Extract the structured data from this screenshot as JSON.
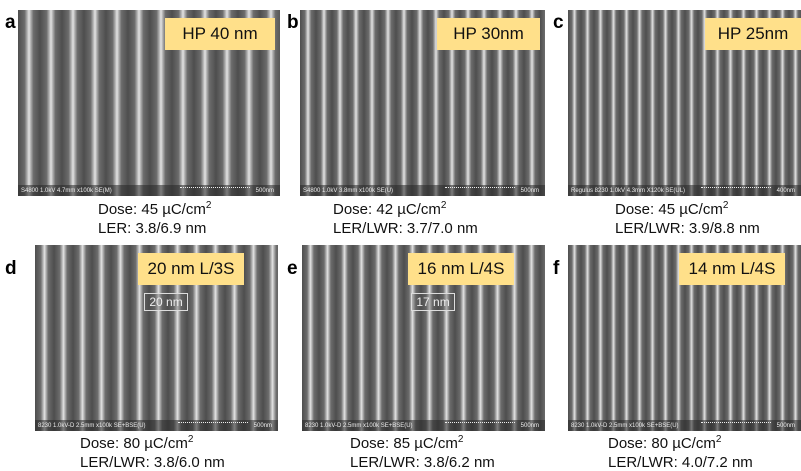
{
  "panels": [
    {
      "letter": "a",
      "label": "HP 40 nm",
      "dose": "Dose: 45 µC/cm",
      "dose_sup": "2",
      "ler": "LER: 3.8/6.9 nm",
      "info": "S4800 1.0kV 4.7mm x100k SE(M)",
      "scale": "500nm"
    },
    {
      "letter": "b",
      "label": "HP 30nm",
      "dose": "Dose: 42 µC/cm",
      "dose_sup": "2",
      "ler": "LER/LWR: 3.7/7.0 nm",
      "info": "S4800 1.0kV 3.8mm x100k SE(U)",
      "scale": "500nm"
    },
    {
      "letter": "c",
      "label": "HP 25nm",
      "dose": "Dose: 45 µC/cm",
      "dose_sup": "2",
      "ler": "LER/LWR: 3.9/8.8 nm",
      "info": "Regulus 8230 1.0kV 4.3mm X120k SE(UL)",
      "scale": "400nm"
    },
    {
      "letter": "d",
      "label": "20 nm  L/3S",
      "dose": "Dose: 80 µC/cm",
      "dose_sup": "2",
      "ler": "LER/LWR: 3.8/6.0 nm",
      "info": "8230 1.0kV-D 2.5mm x100k SE+BSE(U)",
      "scale": "500nm",
      "measure": "20 nm"
    },
    {
      "letter": "e",
      "label": "16 nm  L/4S",
      "dose": "Dose: 85 µC/cm",
      "dose_sup": "2",
      "ler": "LER/LWR: 3.8/6.2 nm",
      "info": "8230 1.0kV-D 2.5mm x100k SE+BSE(U)",
      "scale": "500nm",
      "measure": "17 nm"
    },
    {
      "letter": "f",
      "label": "14 nm  L/4S",
      "dose": "Dose: 80 µC/cm",
      "dose_sup": "2",
      "ler": "LER/LWR: 4.0/7.2 nm",
      "info": "8230 1.0kV-D 2.5mm x100k SE+BSE(U)",
      "scale": "500nm"
    }
  ]
}
